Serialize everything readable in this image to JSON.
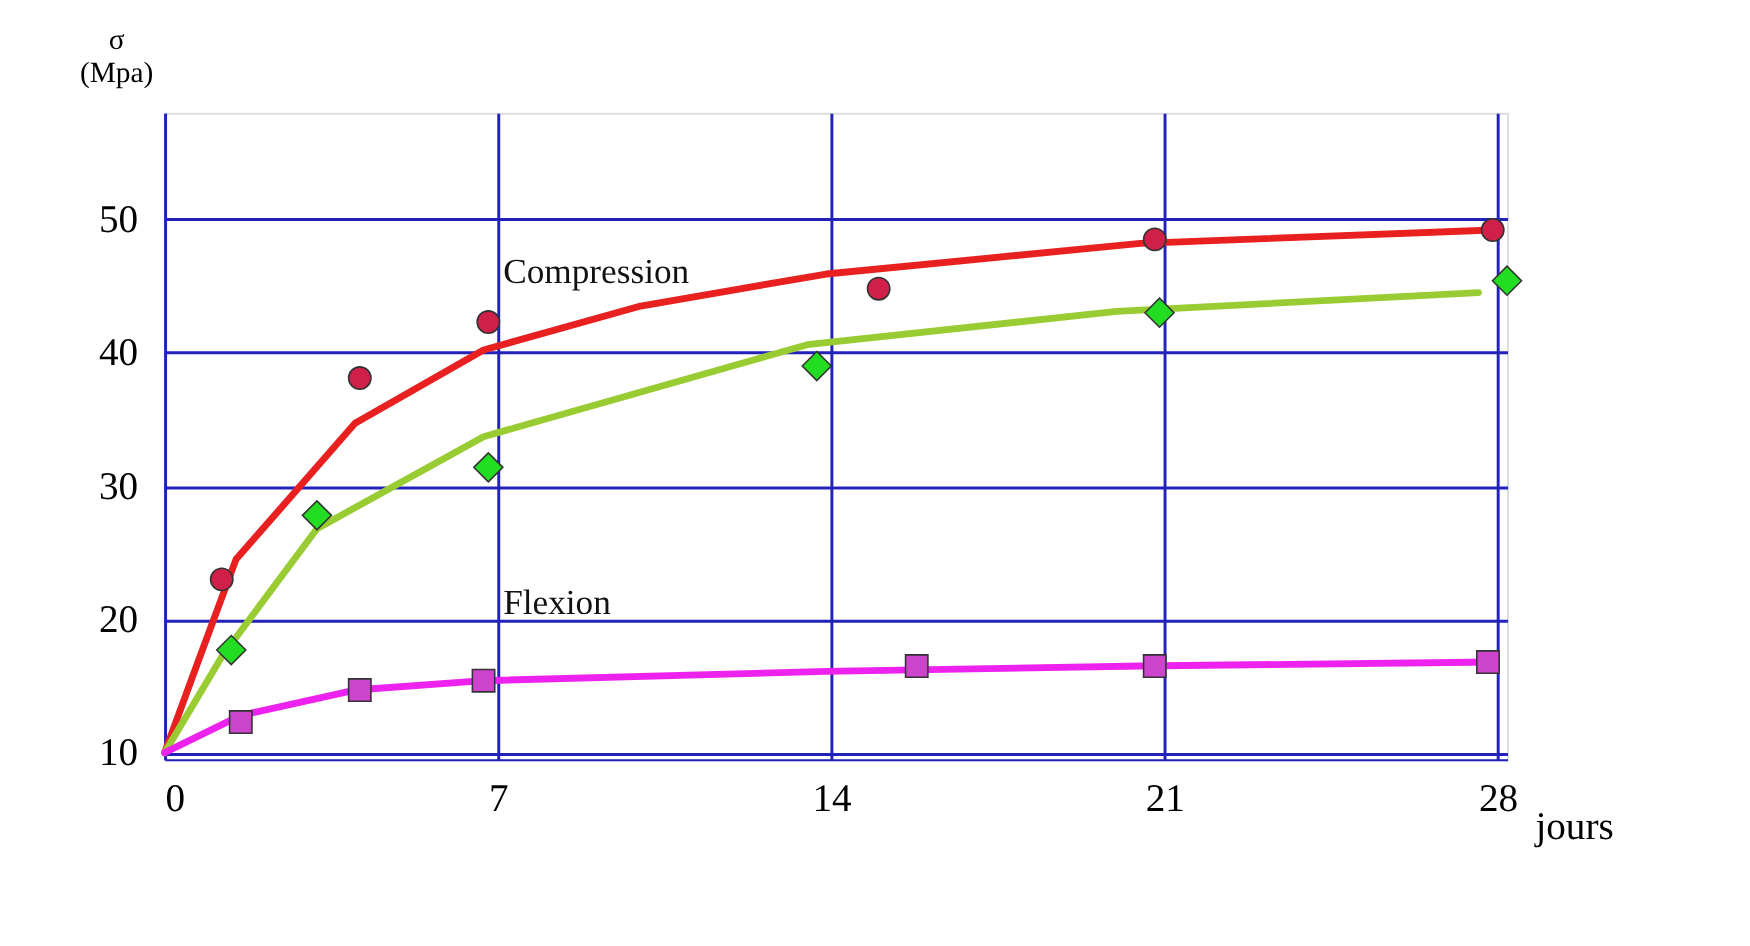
{
  "chart_data": {
    "type": "scatter",
    "xlabel": "jours",
    "ylabel": "σ (Mpa)",
    "xlim": [
      0,
      28.2
    ],
    "ylim": [
      9.5,
      58
    ],
    "xticks": [
      0,
      7,
      14,
      21,
      28
    ],
    "yticks": [
      10,
      20,
      30,
      40,
      50
    ],
    "grid": true,
    "series": [
      {
        "name": "Compression",
        "type": "line",
        "color": "#e82020",
        "marker": "none",
        "x": [
          0,
          0.7,
          1.5,
          4.0,
          6.7,
          10.0,
          13.9,
          20.5,
          27.9
        ],
        "values": [
          10,
          16.8,
          24.5,
          34.7,
          40.2,
          43.5,
          45.9,
          48.2,
          49.2
        ]
      },
      {
        "type": "scatter",
        "color": "#d0204a",
        "marker": "circle",
        "x": [
          1.2,
          4.1,
          6.8,
          15.0,
          20.8,
          27.9
        ],
        "values": [
          23.0,
          38.1,
          42.3,
          44.8,
          48.5,
          49.2
        ]
      },
      {
        "type": "line",
        "color": "#99cc33",
        "marker": "none",
        "x": [
          0,
          1.2,
          3.2,
          6.7,
          13.5,
          20.0,
          27.6
        ],
        "values": [
          10,
          17.2,
          26.8,
          33.7,
          40.6,
          43.1,
          44.5
        ]
      },
      {
        "type": "scatter",
        "color": "#22dd22",
        "marker": "diamond",
        "x": [
          1.4,
          3.2,
          6.8,
          13.7,
          20.9,
          28.2
        ],
        "values": [
          17.7,
          27.8,
          31.4,
          39.0,
          43.0,
          45.4
        ]
      },
      {
        "name": "Flexion",
        "type": "line",
        "color": "#ee22ee",
        "marker": "none",
        "x": [
          0,
          1.6,
          4.0,
          6.7,
          13.9,
          20.5,
          27.9
        ],
        "values": [
          10,
          12.8,
          14.7,
          15.4,
          16.1,
          16.5,
          16.8
        ]
      },
      {
        "type": "scatter",
        "color": "#cc44cc",
        "marker": "square",
        "x": [
          1.6,
          4.1,
          6.7,
          15.8,
          20.8,
          27.8
        ],
        "values": [
          12.3,
          14.7,
          15.4,
          16.5,
          16.5,
          16.8
        ]
      }
    ]
  }
}
